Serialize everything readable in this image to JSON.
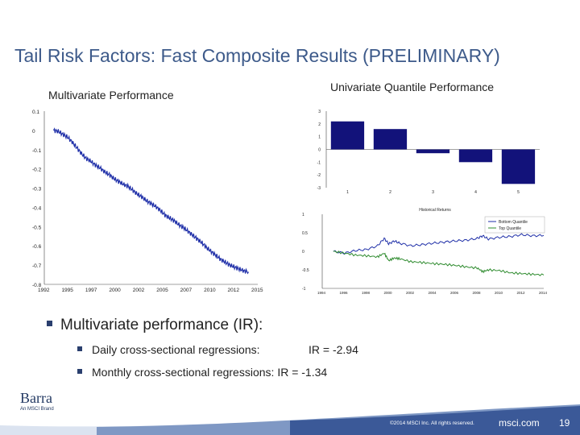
{
  "slide": {
    "title": "Tail Risk Factors: Fast Composite Results (PRELIMINARY)",
    "left_heading": "Multivariate Performance",
    "right_heading": "Univariate Quantile Performance",
    "bullet_main": "Multivariate performance (IR):",
    "bullet_daily_label": "Daily cross-sectional regressions:",
    "bullet_daily_value": "IR = -2.94",
    "bullet_monthly_label": "Monthly cross-sectional regressions:",
    "bullet_monthly_value": "IR = -1.34"
  },
  "footer": {
    "logo_text": "Barra",
    "logo_sub": "An MSCI Brand",
    "copyright": "©2014 MSCI Inc. All rights reserved.",
    "site": "msci.com",
    "page": "19"
  },
  "colors": {
    "title": "#3d5a8a",
    "series_blue": "#1f2fa8",
    "series_green": "#2e8b2e",
    "bar_navy": "#12127a",
    "footer_band": "#3b5998"
  },
  "chart_data": [
    {
      "type": "line",
      "name": "multivariate",
      "title": "",
      "xlabel": "",
      "ylabel": "",
      "x_ticks": [
        "1992",
        "1995",
        "1997",
        "2000",
        "2002",
        "2005",
        "2007",
        "2010",
        "2012",
        "2015"
      ],
      "y_ticks": [
        "0.1",
        "0",
        "-0.1",
        "-0.2",
        "-0.3",
        "-0.4",
        "-0.5",
        "-0.6",
        "-0.7",
        "-0.8"
      ],
      "xlim": [
        1992,
        2015
      ],
      "ylim": [
        -0.8,
        0.1
      ],
      "series": [
        {
          "x": [
            1993,
            1993.5,
            1994,
            1994.5,
            1995,
            1995.5,
            1996,
            1996.5,
            1997,
            1997.5,
            1998,
            1998.5,
            1999,
            1999.5,
            2000,
            2000.5,
            2001,
            2001.5,
            2002,
            2002.5,
            2003,
            2003.5,
            2004,
            2004.5,
            2005,
            2005.5,
            2006,
            2006.5,
            2007,
            2007.5,
            2008,
            2008.5,
            2009,
            2009.5,
            2010,
            2010.5,
            2011,
            2011.5,
            2012,
            2012.5,
            2013,
            2013.5,
            2014
          ],
          "values": [
            0.0,
            -0.005,
            -0.02,
            -0.035,
            -0.06,
            -0.09,
            -0.12,
            -0.145,
            -0.16,
            -0.18,
            -0.195,
            -0.215,
            -0.23,
            -0.25,
            -0.265,
            -0.28,
            -0.29,
            -0.31,
            -0.33,
            -0.345,
            -0.365,
            -0.38,
            -0.395,
            -0.415,
            -0.44,
            -0.455,
            -0.47,
            -0.49,
            -0.505,
            -0.525,
            -0.545,
            -0.565,
            -0.585,
            -0.61,
            -0.63,
            -0.65,
            -0.67,
            -0.685,
            -0.7,
            -0.71,
            -0.72,
            -0.73,
            -0.735
          ]
        }
      ]
    },
    {
      "type": "bar",
      "name": "quantile",
      "categories": [
        "1",
        "2",
        "3",
        "4",
        "5"
      ],
      "values": [
        2.2,
        1.6,
        -0.3,
        -1.0,
        -2.7
      ],
      "y_ticks": [
        "3",
        "2",
        "1",
        "0",
        "-1",
        "-2",
        "-3"
      ],
      "ylim": [
        -3,
        3
      ]
    },
    {
      "type": "line",
      "name": "historical",
      "title": "Historical Returns",
      "x_ticks": [
        "1994",
        "1996",
        "1998",
        "2000",
        "2002",
        "2004",
        "2006",
        "2008",
        "2010",
        "2012",
        "2014"
      ],
      "y_ticks": [
        "1",
        "0.5",
        "0",
        "-0.5",
        "-1"
      ],
      "xlim": [
        1994,
        2014
      ],
      "ylim": [
        -1,
        1
      ],
      "series": [
        {
          "name": "Bottom Quantile",
          "x": [
            1995,
            1996,
            1997,
            1998,
            1999,
            1999.6,
            2000,
            2000.5,
            2001,
            2002,
            2003,
            2004,
            2005,
            2006,
            2007,
            2008,
            2008.5,
            2009,
            2010,
            2011,
            2012,
            2013,
            2014
          ],
          "values": [
            0.0,
            -0.05,
            0.02,
            0.05,
            0.15,
            0.35,
            0.2,
            0.28,
            0.22,
            0.15,
            0.18,
            0.22,
            0.25,
            0.28,
            0.3,
            0.35,
            0.42,
            0.33,
            0.38,
            0.4,
            0.45,
            0.42,
            0.43
          ]
        },
        {
          "name": "Top Quantile",
          "x": [
            1995,
            1996,
            1997,
            1998,
            1999,
            1999.6,
            2000,
            2000.5,
            2001,
            2002,
            2003,
            2004,
            2005,
            2006,
            2007,
            2008,
            2008.5,
            2009,
            2010,
            2011,
            2012,
            2013,
            2014
          ],
          "values": [
            0.0,
            -0.05,
            -0.1,
            -0.12,
            -0.15,
            -0.05,
            -0.25,
            -0.18,
            -0.2,
            -0.28,
            -0.3,
            -0.33,
            -0.35,
            -0.38,
            -0.42,
            -0.45,
            -0.55,
            -0.5,
            -0.52,
            -0.58,
            -0.6,
            -0.62,
            -0.64
          ]
        }
      ]
    }
  ]
}
